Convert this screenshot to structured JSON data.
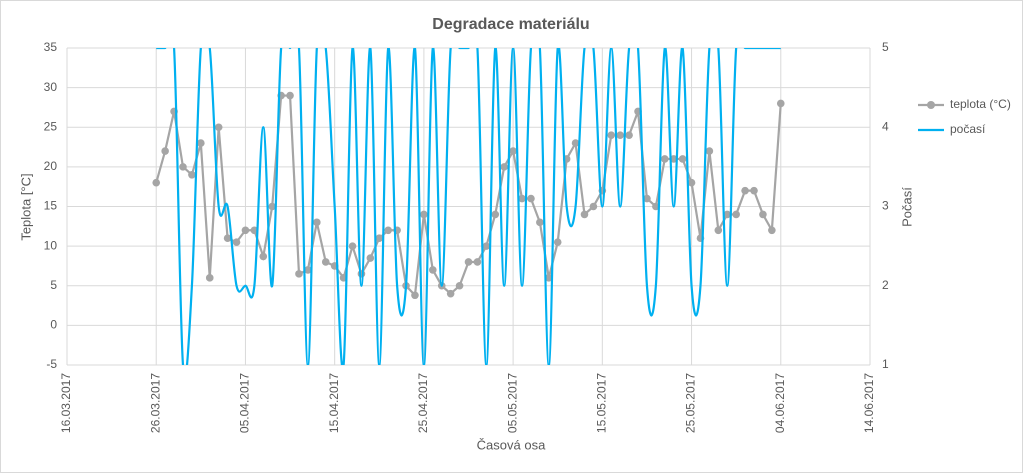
{
  "chart_data": {
    "type": "line",
    "title": "Degradace materiálu",
    "x_label": "Časová osa",
    "y_label": "Teplota [°C]",
    "y2_label": "Počasí",
    "x": [
      "26.03.2017",
      "27.03.2017",
      "28.03.2017",
      "29.03.2017",
      "30.03.2017",
      "31.03.2017",
      "01.04.2017",
      "02.04.2017",
      "03.04.2017",
      "04.04.2017",
      "05.04.2017",
      "06.04.2017",
      "07.04.2017",
      "08.04.2017",
      "09.04.2017",
      "10.04.2017",
      "11.04.2017",
      "12.04.2017",
      "13.04.2017",
      "14.04.2017",
      "15.04.2017",
      "16.04.2017",
      "17.04.2017",
      "18.04.2017",
      "19.04.2017",
      "20.04.2017",
      "21.04.2017",
      "22.04.2017",
      "23.04.2017",
      "24.04.2017",
      "25.04.2017",
      "26.04.2017",
      "27.04.2017",
      "28.04.2017",
      "29.04.2017",
      "30.04.2017",
      "01.05.2017",
      "02.05.2017",
      "03.05.2017",
      "04.05.2017",
      "05.05.2017",
      "06.05.2017",
      "07.05.2017",
      "08.05.2017",
      "09.05.2017",
      "10.05.2017",
      "11.05.2017",
      "12.05.2017",
      "13.05.2017",
      "14.05.2017",
      "15.05.2017",
      "16.05.2017",
      "17.05.2017",
      "18.05.2017",
      "19.05.2017",
      "20.05.2017",
      "21.05.2017",
      "22.05.2017",
      "23.05.2017",
      "24.05.2017",
      "25.05.2017",
      "26.05.2017",
      "27.05.2017",
      "28.05.2017",
      "29.05.2017",
      "30.05.2017",
      "31.05.2017",
      "01.06.2017",
      "02.06.2017",
      "03.06.2017",
      "04.06.2017"
    ],
    "series": [
      {
        "name": "teplota (°C)",
        "color": "#a5a5a5",
        "marker": true,
        "values": [
          18,
          22,
          27,
          20,
          19,
          23,
          6,
          25,
          11,
          10.5,
          12,
          12,
          8.7,
          15,
          29,
          29,
          6.5,
          7,
          13,
          8,
          7.5,
          6,
          10,
          6.5,
          8.5,
          11,
          12,
          12,
          5,
          3.8,
          14,
          7,
          5,
          4,
          5,
          8,
          8,
          10,
          14,
          20,
          22,
          16,
          16,
          13,
          6,
          10.5,
          21,
          23,
          14,
          15,
          17,
          24,
          24,
          24,
          27,
          16,
          15,
          21,
          21,
          21,
          18,
          11,
          22,
          12,
          14,
          14,
          17,
          17,
          14,
          12,
          28
        ]
      },
      {
        "name": "počasí",
        "color": "#00b0f0",
        "axis": "y2",
        "smooth": true,
        "values": [
          5,
          5,
          5,
          1,
          2,
          5,
          5,
          3,
          3,
          2,
          2,
          2,
          4,
          2,
          5,
          5,
          5,
          1,
          5,
          5,
          3,
          1,
          5,
          2,
          5,
          1,
          5,
          2,
          2,
          5,
          1,
          5,
          2,
          5,
          5,
          5,
          5,
          1,
          5,
          2,
          5,
          2,
          5,
          5,
          1,
          5,
          3,
          3,
          5,
          5,
          3,
          5,
          3,
          5,
          5,
          2,
          2,
          5,
          3,
          5,
          2,
          2,
          5,
          5,
          2,
          5,
          5,
          5,
          5,
          5,
          5
        ]
      }
    ],
    "xlim": [
      "16.03.2017",
      "14.06.2017"
    ],
    "xticks": [
      "16.03.2017",
      "26.03.2017",
      "05.04.2017",
      "15.04.2017",
      "25.04.2017",
      "05.05.2017",
      "15.05.2017",
      "25.05.2017",
      "04.06.2017",
      "14.06.2017"
    ],
    "ylim": [
      -5,
      35
    ],
    "yticks": [
      -5,
      0,
      5,
      10,
      15,
      20,
      25,
      30,
      35
    ],
    "y2lim": [
      1,
      5
    ],
    "y2ticks": [
      1,
      2,
      3,
      4,
      5
    ],
    "grid": true,
    "legend": "right"
  }
}
